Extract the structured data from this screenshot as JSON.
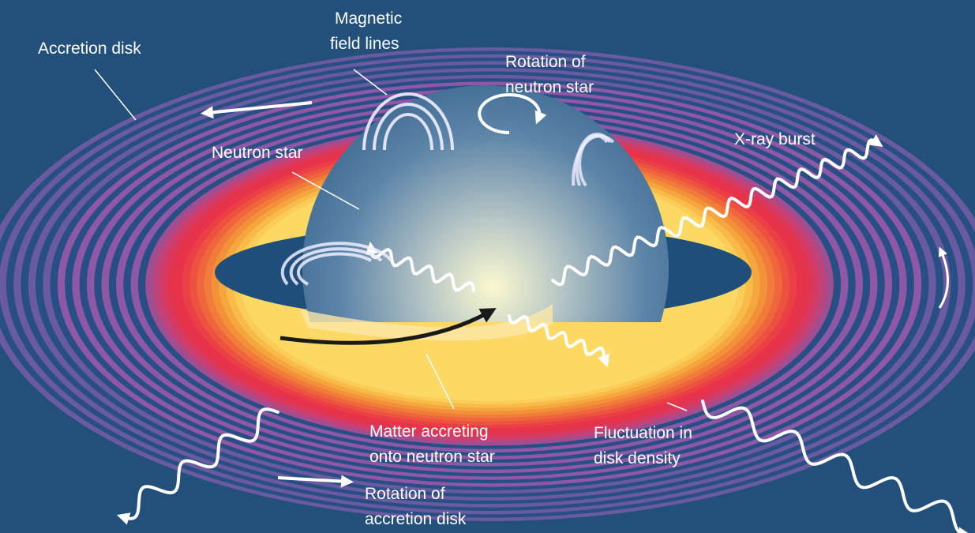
{
  "labels": [
    {
      "lines": [
        "Accretion disk"
      ]
    },
    {
      "lines": [
        "Magnetic",
        "field lines"
      ]
    },
    {
      "lines": [
        "Rotation of",
        "neutron star"
      ]
    },
    {
      "lines": [
        "Neutron star"
      ]
    },
    {
      "lines": [
        "X-ray burst"
      ]
    },
    {
      "lines": [
        "Matter accreting",
        "onto neutron star"
      ]
    },
    {
      "lines": [
        "Fluctuation in",
        "disk density"
      ]
    },
    {
      "lines": [
        "Rotation of",
        "accretion disk"
      ]
    }
  ]
}
